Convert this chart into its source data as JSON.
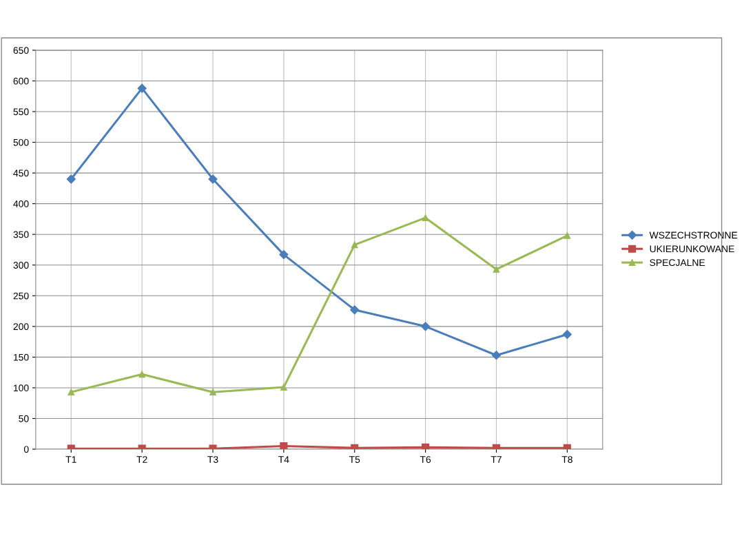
{
  "chart_data": {
    "type": "line",
    "categories": [
      "T1",
      "T2",
      "T3",
      "T4",
      "T5",
      "T6",
      "T7",
      "T8"
    ],
    "series": [
      {
        "name": "WSZECHSTRONNE",
        "color": "#4a7ebb",
        "marker": "diamond",
        "values": [
          440,
          588,
          440,
          317,
          227,
          200,
          153,
          187
        ]
      },
      {
        "name": "UKIERUNKOWANE",
        "color": "#be4b48",
        "marker": "square",
        "values": [
          1,
          1,
          1,
          5,
          2,
          3,
          2,
          2
        ]
      },
      {
        "name": "SPECJALNE",
        "color": "#98b954",
        "marker": "triangle",
        "values": [
          93,
          122,
          93,
          101,
          333,
          377,
          293,
          348
        ]
      }
    ],
    "ylim": [
      0,
      650
    ],
    "yticks": [
      0,
      50,
      100,
      150,
      200,
      250,
      300,
      350,
      400,
      450,
      500,
      550,
      600,
      650
    ],
    "grid": true,
    "legend": "right",
    "line_style": "solid"
  }
}
